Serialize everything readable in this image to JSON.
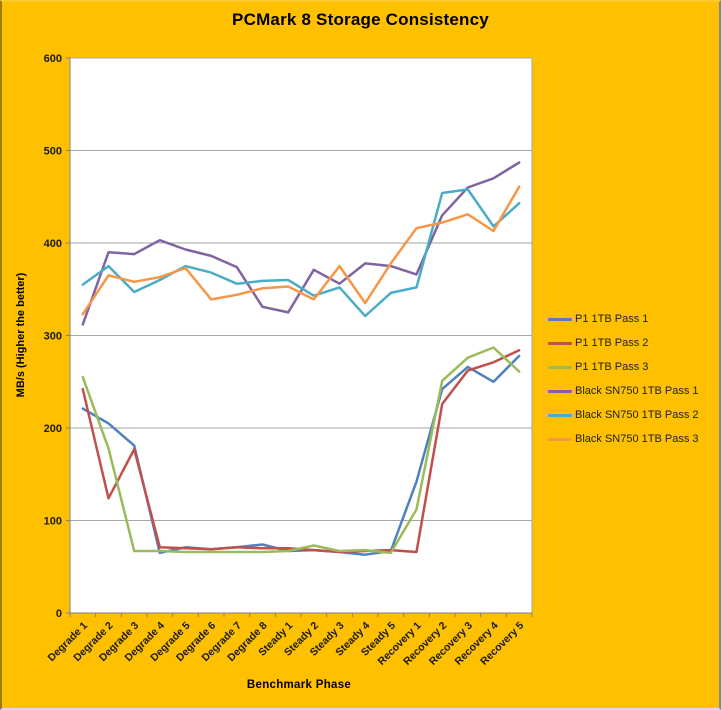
{
  "chart_data": {
    "type": "line",
    "title": "PCMark 8 Storage Consistency",
    "xlabel": "Benchmark Phase",
    "ylabel": "MB/s (Higher the better)",
    "ylim": [
      0,
      600
    ],
    "yticks": [
      0,
      100,
      200,
      300,
      400,
      500,
      600
    ],
    "grid": true,
    "legend_position": "right",
    "categories": [
      "Degrade 1",
      "Degrade 2",
      "Degrade 3",
      "Degrade 4",
      "Degrade 5",
      "Degrade 6",
      "Degrade 7",
      "Degrade 8",
      "Steady 1",
      "Steady 2",
      "Steady 3",
      "Steady 4",
      "Steady 5",
      "Recovery 1",
      "Recovery 2",
      "Recovery 3",
      "Recovery 4",
      "Recovery 5"
    ],
    "series": [
      {
        "name": "P1 1TB Pass 1",
        "color": "#4F81BD",
        "values": [
          221,
          205,
          181,
          65,
          71,
          69,
          71,
          74,
          67,
          68,
          66,
          63,
          67,
          142,
          242,
          266,
          250,
          278
        ]
      },
      {
        "name": "P1 1TB Pass 2",
        "color": "#C0504D",
        "values": [
          242,
          124,
          177,
          71,
          70,
          69,
          71,
          70,
          70,
          68,
          66,
          67,
          68,
          66,
          226,
          262,
          271,
          284
        ]
      },
      {
        "name": "P1 1TB Pass 3",
        "color": "#9BBB59",
        "values": [
          255,
          178,
          67,
          67,
          66,
          66,
          66,
          66,
          67,
          73,
          67,
          68,
          65,
          112,
          251,
          276,
          287,
          261
        ]
      },
      {
        "name": "Black SN750 1TB Pass 1",
        "color": "#8064A2",
        "values": [
          312,
          390,
          388,
          403,
          393,
          386,
          374,
          331,
          325,
          371,
          356,
          378,
          375,
          366,
          430,
          460,
          470,
          487
        ]
      },
      {
        "name": "Black SN750 1TB Pass 2",
        "color": "#4BACC6",
        "values": [
          355,
          375,
          347,
          360,
          375,
          368,
          356,
          359,
          360,
          343,
          352,
          321,
          346,
          352,
          454,
          458,
          418,
          443
        ]
      },
      {
        "name": "Black SN750 1TB Pass 3",
        "color": "#F79646",
        "values": [
          323,
          365,
          358,
          363,
          373,
          339,
          344,
          351,
          353,
          339,
          375,
          335,
          378,
          416,
          422,
          431,
          413,
          461
        ]
      }
    ]
  },
  "colors": {
    "background": "#FFC000",
    "plot_background": "#FFFFFF",
    "gridline": "#A6A6A6",
    "axis": "#808080",
    "tick_text": "#1A1A1A",
    "title_text": "#000000"
  }
}
